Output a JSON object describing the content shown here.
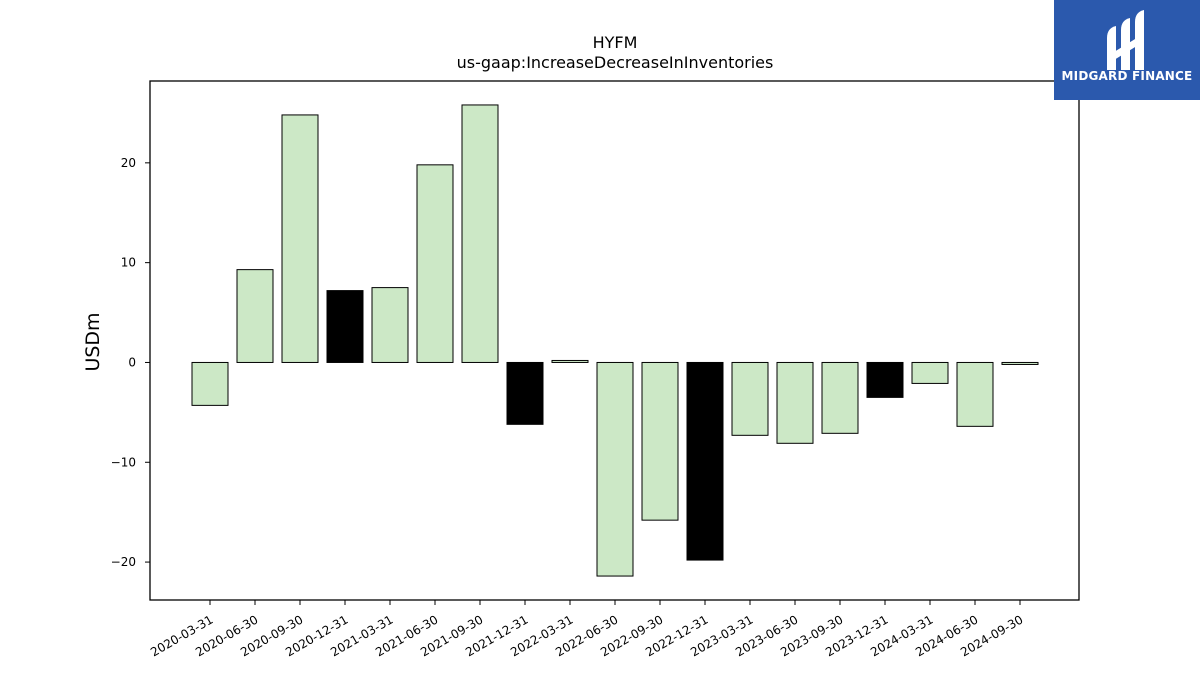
{
  "chart_data": {
    "type": "bar",
    "title": "HYFM",
    "subtitle": "us-gaap:IncreaseDecreaseInInventories",
    "ylabel": "USDm",
    "xlabel": "",
    "ylim": [
      -23.8,
      28.2
    ],
    "yticks": [
      -20,
      -10,
      0,
      10,
      20
    ],
    "ytick_labels": [
      "−20",
      "−10",
      "0",
      "10",
      "20"
    ],
    "categories": [
      "2020-03-31",
      "2020-06-30",
      "2020-09-30",
      "2020-12-31",
      "2021-03-31",
      "2021-06-30",
      "2021-09-30",
      "2021-12-31",
      "2022-03-31",
      "2022-06-30",
      "2022-09-30",
      "2022-12-31",
      "2023-03-31",
      "2023-06-30",
      "2023-09-30",
      "2023-12-31",
      "2024-03-31",
      "2024-06-30",
      "2024-09-30"
    ],
    "values": [
      -4.3,
      9.3,
      24.8,
      7.2,
      7.5,
      19.8,
      25.8,
      -6.2,
      0.2,
      -21.4,
      -15.8,
      -19.8,
      -7.3,
      -8.1,
      -7.1,
      -3.5,
      -2.1,
      -6.4,
      -0.2
    ],
    "bar_colors": [
      "#cce8c6",
      "#cce8c6",
      "#cce8c6",
      "#000000",
      "#cce8c6",
      "#cce8c6",
      "#cce8c6",
      "#000000",
      "#cce8c6",
      "#cce8c6",
      "#cce8c6",
      "#000000",
      "#cce8c6",
      "#cce8c6",
      "#cce8c6",
      "#000000",
      "#cce8c6",
      "#cce8c6",
      "#cce8c6"
    ],
    "grid": false,
    "legend": "none"
  },
  "logo": {
    "text": "MIDGARD FINANCE",
    "background": "#2b59ad"
  }
}
